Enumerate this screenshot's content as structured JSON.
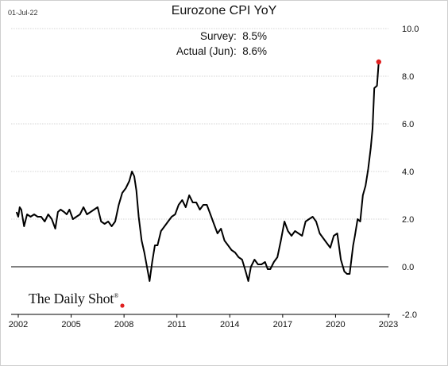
{
  "date_stamp": "01-Jul-22",
  "title": "Eurozone CPI YoY",
  "annotations": {
    "survey": "Survey:  8.5%",
    "actual": "Actual (Jun):  8.6%"
  },
  "logo_text": "The Daily Shot",
  "logo_mark": "®",
  "colors": {
    "line": "#000000",
    "highlight_point": "#e02020",
    "grid": "#c8c8c8",
    "zero_line": "#000000"
  },
  "chart_data": {
    "type": "line",
    "title": "Eurozone CPI YoY",
    "xlabel": "",
    "ylabel": "",
    "xlim": [
      2002,
      2023
    ],
    "ylim": [
      -2,
      10
    ],
    "x_ticks": [
      2002,
      2005,
      2008,
      2011,
      2014,
      2017,
      2020,
      2023
    ],
    "x_tick_labels": [
      "2002",
      "2005",
      "2008",
      "2011",
      "2014",
      "2017",
      "2020",
      "2023"
    ],
    "y_ticks": [
      -2,
      0,
      2,
      4,
      6,
      8,
      10
    ],
    "y_tick_labels": [
      "-2.0",
      "0.0",
      "2.0",
      "4.0",
      "6.0",
      "8.0",
      "10.0"
    ],
    "y_axis_side": "right",
    "grid": "horizontal dotted",
    "series": [
      {
        "x": [
          2001.9,
          2002.0,
          2002.08,
          2002.17,
          2002.33,
          2002.5,
          2002.7,
          2002.9,
          2003.1,
          2003.3,
          2003.5,
          2003.7,
          2003.9,
          2004.1,
          2004.25,
          2004.4,
          2004.6,
          2004.75,
          2004.9,
          2005.1,
          2005.3,
          2005.5,
          2005.7,
          2005.9,
          2006.1,
          2006.3,
          2006.5,
          2006.7,
          2006.9,
          2007.1,
          2007.3,
          2007.5,
          2007.7,
          2007.9,
          2008.1,
          2008.3,
          2008.45,
          2008.58,
          2008.7,
          2008.83,
          2009.0,
          2009.15,
          2009.3,
          2009.45,
          2009.6,
          2009.75,
          2009.9,
          2010.1,
          2010.3,
          2010.5,
          2010.7,
          2010.9,
          2011.1,
          2011.3,
          2011.5,
          2011.7,
          2011.9,
          2012.1,
          2012.3,
          2012.5,
          2012.7,
          2012.9,
          2013.1,
          2013.3,
          2013.5,
          2013.7,
          2013.9,
          2014.1,
          2014.3,
          2014.5,
          2014.7,
          2014.9,
          2015.05,
          2015.2,
          2015.4,
          2015.6,
          2015.8,
          2016.0,
          2016.15,
          2016.3,
          2016.5,
          2016.7,
          2016.9,
          2017.1,
          2017.3,
          2017.5,
          2017.7,
          2017.9,
          2018.1,
          2018.3,
          2018.5,
          2018.7,
          2018.9,
          2019.1,
          2019.3,
          2019.5,
          2019.7,
          2019.9,
          2020.1,
          2020.3,
          2020.5,
          2020.65,
          2020.8,
          2021.0,
          2021.1,
          2021.25,
          2021.4,
          2021.55,
          2021.7,
          2021.85,
          2022.0,
          2022.1,
          2022.2,
          2022.35,
          2022.45
        ],
        "y": [
          2.3,
          2.1,
          2.5,
          2.4,
          1.7,
          2.2,
          2.1,
          2.2,
          2.1,
          2.1,
          1.9,
          2.2,
          2.0,
          1.6,
          2.3,
          2.4,
          2.3,
          2.2,
          2.4,
          2.0,
          2.1,
          2.2,
          2.5,
          2.2,
          2.3,
          2.4,
          2.5,
          1.9,
          1.8,
          1.9,
          1.7,
          1.9,
          2.6,
          3.1,
          3.3,
          3.6,
          4.0,
          3.8,
          3.2,
          2.1,
          1.1,
          0.6,
          0.0,
          -0.6,
          0.2,
          0.9,
          0.9,
          1.5,
          1.7,
          1.9,
          2.1,
          2.2,
          2.6,
          2.8,
          2.5,
          3.0,
          2.7,
          2.7,
          2.4,
          2.6,
          2.6,
          2.2,
          1.8,
          1.4,
          1.6,
          1.1,
          0.9,
          0.7,
          0.6,
          0.4,
          0.3,
          -0.2,
          -0.6,
          0.0,
          0.3,
          0.1,
          0.1,
          0.2,
          -0.1,
          -0.1,
          0.2,
          0.4,
          1.1,
          1.9,
          1.5,
          1.3,
          1.5,
          1.4,
          1.3,
          1.9,
          2.0,
          2.1,
          1.9,
          1.4,
          1.2,
          1.0,
          0.8,
          1.3,
          1.4,
          0.3,
          -0.2,
          -0.3,
          -0.3,
          0.9,
          1.3,
          2.0,
          1.9,
          3.0,
          3.4,
          4.1,
          5.0,
          5.8,
          7.5,
          7.6,
          8.6
        ]
      }
    ],
    "latest_point": {
      "x": 2022.45,
      "y": 8.6
    }
  }
}
